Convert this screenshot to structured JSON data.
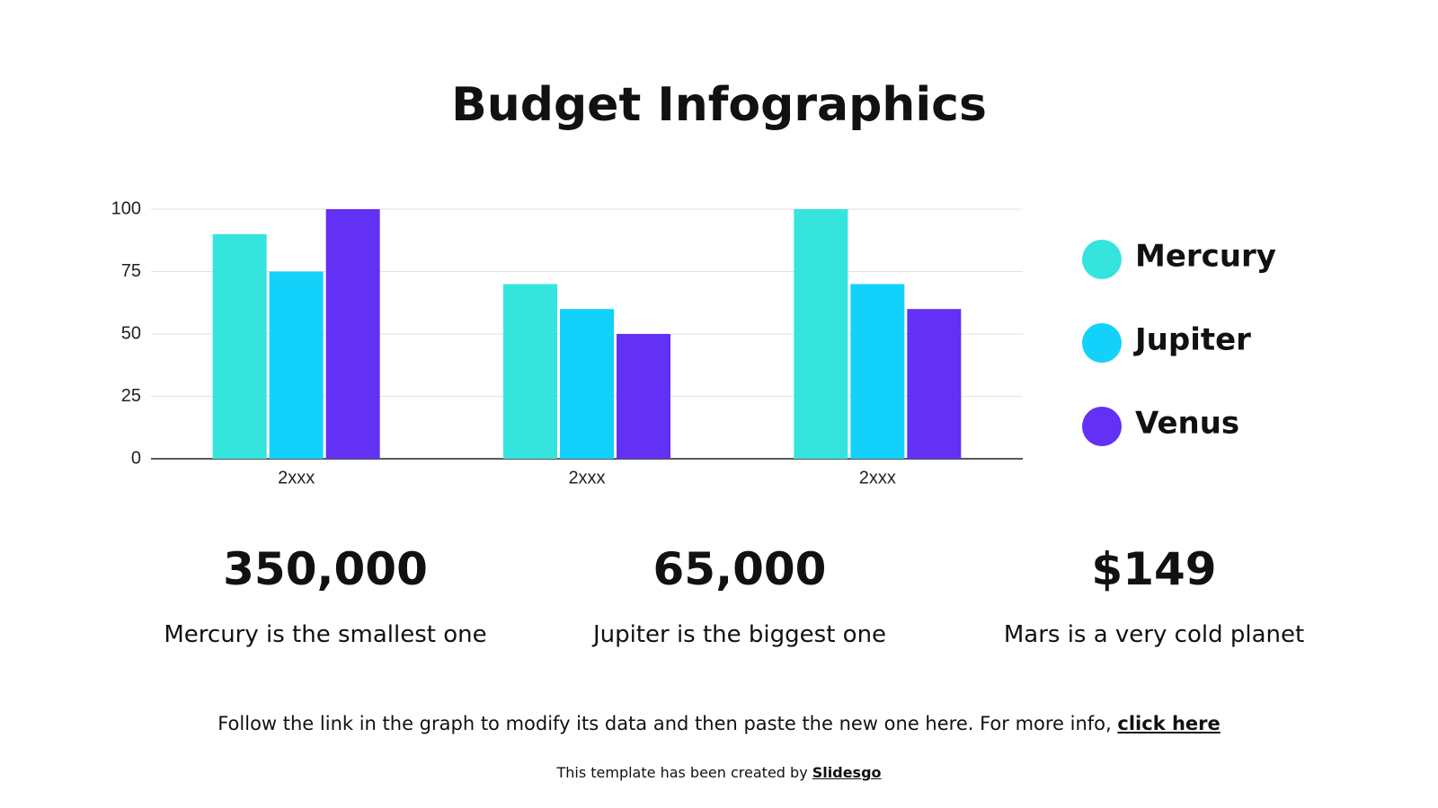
{
  "title": "Budget Infographics",
  "chart_data": {
    "type": "bar",
    "categories": [
      "2xxx",
      "2xxx",
      "2xxx"
    ],
    "series": [
      {
        "name": "Mercury",
        "color": "#36e4de",
        "values": [
          90,
          70,
          100
        ]
      },
      {
        "name": "Jupiter",
        "color": "#12d2fb",
        "values": [
          75,
          60,
          70
        ]
      },
      {
        "name": "Venus",
        "color": "#6330f5",
        "values": [
          100,
          50,
          60
        ]
      }
    ],
    "ylim": [
      0,
      100
    ],
    "yticks": [
      0,
      25,
      50,
      75,
      100
    ],
    "grid": true,
    "legend": "right"
  },
  "stats": [
    {
      "value": "350,000",
      "text": "Mercury is the smallest one"
    },
    {
      "value": "65,000",
      "text": "Jupiter is the biggest one"
    },
    {
      "value": "$149",
      "text": "Mars is a very cold planet"
    }
  ],
  "footer": {
    "text": "Follow the link in the graph to modify its data and then paste the new one here. For more info,",
    "link": "click here"
  },
  "credit": {
    "text": "This template has been created by",
    "link": "Slidesgo"
  }
}
